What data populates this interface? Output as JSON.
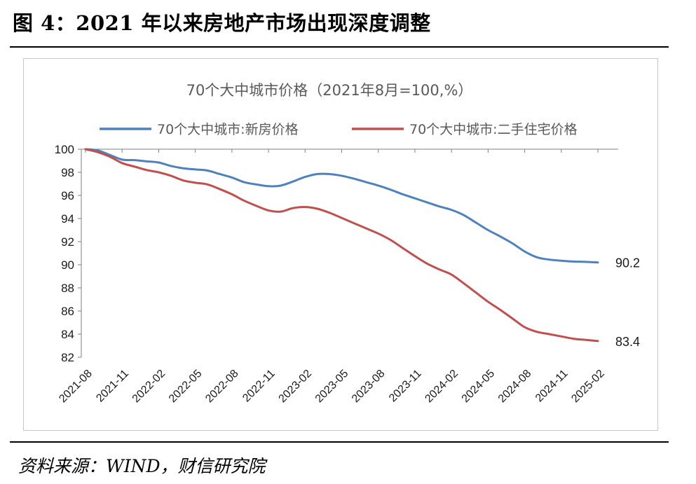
{
  "figure_title": "图 4：2021 年以来房地产市场出现深度调整",
  "source": "资料来源：WIND，财信研究院",
  "colors": {
    "new_homes": "#4f81bd",
    "second_hand": "#c0504d",
    "axis": "#7f7f7f"
  },
  "chart_data": {
    "type": "line",
    "title": "70个大中城市价格（2021年8月=100,%）",
    "xlabel": "",
    "ylabel": "",
    "ylim": [
      82,
      100
    ],
    "yticks": [
      100,
      98,
      96,
      94,
      92,
      90,
      88,
      86,
      84,
      82
    ],
    "xtick_labels": [
      "2021-08",
      "2021-11",
      "2022-02",
      "2022-05",
      "2022-08",
      "2022-11",
      "2023-02",
      "2023-05",
      "2023-08",
      "2023-11",
      "2024-02",
      "2024-05",
      "2024-08",
      "2024-11",
      "2025-02"
    ],
    "legend_position": "top",
    "grid": false,
    "x": [
      "2021-08",
      "2021-09",
      "2021-10",
      "2021-11",
      "2021-12",
      "2022-01",
      "2022-02",
      "2022-03",
      "2022-04",
      "2022-05",
      "2022-06",
      "2022-07",
      "2022-08",
      "2022-09",
      "2022-10",
      "2022-11",
      "2022-12",
      "2023-01",
      "2023-02",
      "2023-03",
      "2023-04",
      "2023-05",
      "2023-06",
      "2023-07",
      "2023-08",
      "2023-09",
      "2023-10",
      "2023-11",
      "2023-12",
      "2024-01",
      "2024-02",
      "2024-03",
      "2024-04",
      "2024-05",
      "2024-06",
      "2024-07",
      "2024-08",
      "2024-09",
      "2024-10",
      "2024-11",
      "2024-12",
      "2025-01",
      "2025-02"
    ],
    "series": [
      {
        "name": "70个大中城市:新房价格",
        "values": [
          100,
          99.9,
          99.5,
          99.1,
          99.05,
          98.95,
          98.85,
          98.55,
          98.35,
          98.25,
          98.15,
          97.85,
          97.55,
          97.15,
          96.95,
          96.8,
          96.85,
          97.2,
          97.6,
          97.85,
          97.85,
          97.7,
          97.45,
          97.15,
          96.85,
          96.5,
          96.1,
          95.75,
          95.4,
          95.05,
          94.75,
          94.3,
          93.65,
          93.0,
          92.45,
          91.85,
          91.15,
          90.65,
          90.45,
          90.35,
          90.28,
          90.25,
          90.2
        ],
        "end_label": "90.2"
      },
      {
        "name": "70个大中城市:二手住宅价格",
        "values": [
          100,
          99.75,
          99.35,
          98.8,
          98.5,
          98.2,
          98.0,
          97.7,
          97.3,
          97.1,
          96.95,
          96.55,
          96.1,
          95.55,
          95.1,
          94.7,
          94.6,
          94.9,
          95.0,
          94.85,
          94.5,
          94.05,
          93.6,
          93.15,
          92.7,
          92.15,
          91.45,
          90.75,
          90.1,
          89.6,
          89.15,
          88.4,
          87.6,
          86.8,
          86.1,
          85.35,
          84.6,
          84.2,
          84.0,
          83.8,
          83.6,
          83.5,
          83.4
        ],
        "end_label": "83.4"
      }
    ]
  }
}
